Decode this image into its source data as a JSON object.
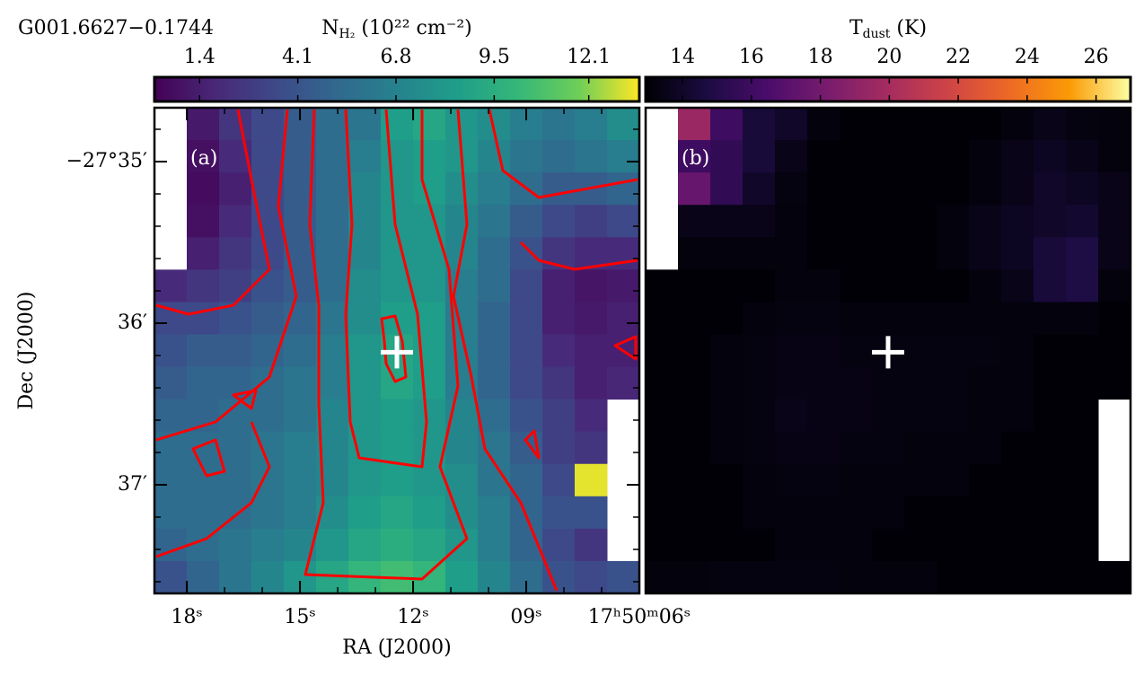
{
  "title": "G001.6627−0.1744",
  "chart_data": [
    {
      "type": "heatmap",
      "panel_label": "(a)",
      "colorbar_label": {
        "symbol": "N",
        "subscript": "H₂",
        "unit": " (10²² cm⁻²)"
      },
      "colormap": "viridis",
      "clim": [
        0.16,
        13.49
      ],
      "cticks": [
        1.4,
        4.1,
        6.8,
        9.5,
        12.1
      ],
      "xlabel": "RA (J2000)",
      "ylabel": "Dec (J2000)",
      "xlim": [
        18.86,
        6.0
      ],
      "xticks": [
        {
          "value": 18,
          "label": "18ˢ"
        },
        {
          "value": 15,
          "label": "15ˢ"
        },
        {
          "value": 12,
          "label": "12ˢ"
        },
        {
          "value": 9,
          "label": "09ˢ"
        },
        {
          "value": 6,
          "label": "17ʰ50ᵐ06ˢ"
        }
      ],
      "ylim": [
        34.667,
        37.672
      ],
      "yticks": [
        {
          "value": 35,
          "label": "−27°35′"
        },
        {
          "value": 36,
          "label": "36′"
        },
        {
          "value": 37,
          "label": "37′"
        }
      ],
      "contour_color": "#ff0000",
      "marker": {
        "x": 12.43,
        "y": 36.18,
        "color": "#ffffff"
      },
      "z": [
        [
          null,
          1.2,
          2.5,
          3.5,
          4.5,
          5.5,
          6.0,
          8.5,
          9.0,
          8.0,
          7.5,
          6.5,
          6.0,
          6.5,
          7.5
        ],
        [
          null,
          0.8,
          2.0,
          3.5,
          4.5,
          5.5,
          6.5,
          8.0,
          8.5,
          8.0,
          7.0,
          6.0,
          5.5,
          6.0,
          6.5
        ],
        [
          null,
          0.6,
          1.5,
          3.5,
          4.5,
          5.5,
          7.0,
          8.0,
          8.5,
          7.5,
          6.5,
          5.5,
          4.5,
          4.5,
          5.0
        ],
        [
          null,
          0.8,
          2.0,
          3.5,
          4.5,
          5.5,
          7.0,
          8.0,
          8.0,
          7.0,
          6.0,
          4.5,
          3.5,
          3.0,
          3.5
        ],
        [
          null,
          1.5,
          2.5,
          3.5,
          4.5,
          5.5,
          7.0,
          8.0,
          8.0,
          7.0,
          5.5,
          4.0,
          2.5,
          2.0,
          2.0
        ],
        [
          2.0,
          2.5,
          3.0,
          4.0,
          4.5,
          5.5,
          7.5,
          8.0,
          8.0,
          6.5,
          5.5,
          3.5,
          1.5,
          1.0,
          1.2
        ],
        [
          3.5,
          3.5,
          4.0,
          4.5,
          5.0,
          6.0,
          7.5,
          8.5,
          8.5,
          6.5,
          5.0,
          3.5,
          1.5,
          1.2,
          1.5
        ],
        [
          4.0,
          4.5,
          4.5,
          5.0,
          5.5,
          6.5,
          8.0,
          9.0,
          8.5,
          6.5,
          5.0,
          3.5,
          2.0,
          1.5,
          1.5
        ],
        [
          4.5,
          5.0,
          5.0,
          5.5,
          6.0,
          6.5,
          8.0,
          9.0,
          8.5,
          6.5,
          5.0,
          3.5,
          2.5,
          1.5,
          1.8
        ],
        [
          5.0,
          5.0,
          5.5,
          5.5,
          6.0,
          7.0,
          8.0,
          8.5,
          8.0,
          7.0,
          5.5,
          4.0,
          3.0,
          2.0,
          null
        ],
        [
          5.5,
          5.5,
          5.5,
          6.0,
          6.5,
          7.0,
          8.0,
          8.5,
          8.0,
          7.0,
          6.0,
          4.5,
          3.0,
          2.5,
          null
        ],
        [
          5.5,
          5.5,
          5.5,
          6.0,
          6.5,
          7.0,
          8.0,
          8.5,
          8.0,
          7.5,
          6.0,
          5.0,
          3.5,
          13.2,
          null
        ],
        [
          5.5,
          5.5,
          5.5,
          6.0,
          6.5,
          7.5,
          8.5,
          9.0,
          8.5,
          7.5,
          6.5,
          5.0,
          4.0,
          4.0,
          null
        ],
        [
          5.0,
          5.5,
          6.0,
          6.5,
          7.0,
          8.0,
          9.0,
          9.5,
          9.0,
          8.0,
          6.5,
          5.0,
          3.5,
          2.5,
          null
        ],
        [
          4.0,
          5.0,
          6.0,
          7.0,
          8.0,
          9.0,
          10.0,
          10.5,
          10.0,
          8.5,
          7.0,
          5.5,
          4.0,
          3.5,
          4.0
        ]
      ]
    },
    {
      "type": "heatmap",
      "panel_label": "(b)",
      "colorbar_label": {
        "symbol": "T",
        "subscript": "dust",
        "unit": " (K)"
      },
      "colormap": "inferno",
      "clim": [
        12.93,
        27.0
      ],
      "cticks": [
        14,
        16,
        18,
        20,
        22,
        24,
        26
      ],
      "marker": {
        "x": 12.43,
        "y": 36.18,
        "color": "#ffffff"
      },
      "xlim": [
        18.86,
        6.0
      ],
      "ylim": [
        34.667,
        37.672
      ],
      "z": [
        [
          null,
          19.5,
          16.0,
          14.5,
          14.0,
          13.2,
          13.0,
          13.0,
          13.0,
          13.0,
          13.0,
          13.2,
          13.5,
          13.3,
          13.2
        ],
        [
          null,
          16.0,
          15.5,
          14.5,
          13.5,
          13.0,
          13.0,
          13.0,
          13.0,
          13.0,
          13.2,
          13.5,
          13.8,
          13.5,
          13.2
        ],
        [
          null,
          17.5,
          15.5,
          14.0,
          13.3,
          13.0,
          13.0,
          13.0,
          13.0,
          13.0,
          13.2,
          13.5,
          14.0,
          13.8,
          13.5
        ],
        [
          null,
          13.5,
          13.5,
          13.5,
          13.2,
          13.0,
          13.0,
          13.0,
          13.0,
          13.2,
          13.5,
          13.8,
          14.0,
          14.2,
          13.5
        ],
        [
          null,
          13.2,
          13.2,
          13.2,
          13.2,
          13.0,
          13.0,
          13.0,
          13.0,
          13.2,
          13.5,
          13.8,
          14.5,
          14.8,
          13.5
        ],
        [
          13.0,
          13.0,
          13.0,
          13.0,
          13.2,
          13.2,
          13.0,
          13.0,
          13.0,
          13.0,
          13.2,
          13.5,
          14.5,
          14.8,
          13.2
        ],
        [
          13.0,
          13.0,
          13.0,
          13.2,
          13.3,
          13.3,
          13.2,
          13.2,
          13.2,
          13.2,
          13.2,
          13.2,
          13.2,
          13.2,
          13.0
        ],
        [
          13.0,
          13.0,
          13.2,
          13.3,
          13.4,
          13.4,
          13.3,
          13.3,
          13.3,
          13.3,
          13.3,
          13.2,
          13.0,
          13.0,
          13.0
        ],
        [
          13.0,
          13.0,
          13.2,
          13.3,
          13.4,
          13.4,
          13.4,
          13.3,
          13.3,
          13.3,
          13.2,
          13.2,
          13.0,
          13.0,
          13.0
        ],
        [
          13.0,
          13.0,
          13.2,
          13.3,
          13.5,
          13.4,
          13.4,
          13.3,
          13.3,
          13.3,
          13.2,
          13.2,
          13.0,
          13.0,
          null
        ],
        [
          13.0,
          13.0,
          13.2,
          13.3,
          13.4,
          13.4,
          13.3,
          13.3,
          13.2,
          13.2,
          13.2,
          13.0,
          13.0,
          13.0,
          null
        ],
        [
          13.0,
          13.0,
          13.0,
          13.2,
          13.3,
          13.3,
          13.2,
          13.2,
          13.2,
          13.2,
          13.0,
          13.0,
          13.0,
          13.0,
          null
        ],
        [
          13.0,
          13.0,
          13.0,
          13.2,
          13.2,
          13.2,
          13.2,
          13.2,
          13.0,
          13.0,
          13.0,
          13.0,
          13.0,
          13.0,
          null
        ],
        [
          13.0,
          13.0,
          13.0,
          13.0,
          13.2,
          13.2,
          13.2,
          13.0,
          13.0,
          13.0,
          13.0,
          13.0,
          13.0,
          13.0,
          null
        ],
        [
          13.2,
          13.2,
          13.3,
          13.3,
          13.3,
          13.3,
          13.2,
          13.2,
          13.2,
          13.0,
          13.0,
          13.0,
          13.0,
          13.0,
          13.0
        ]
      ]
    }
  ]
}
